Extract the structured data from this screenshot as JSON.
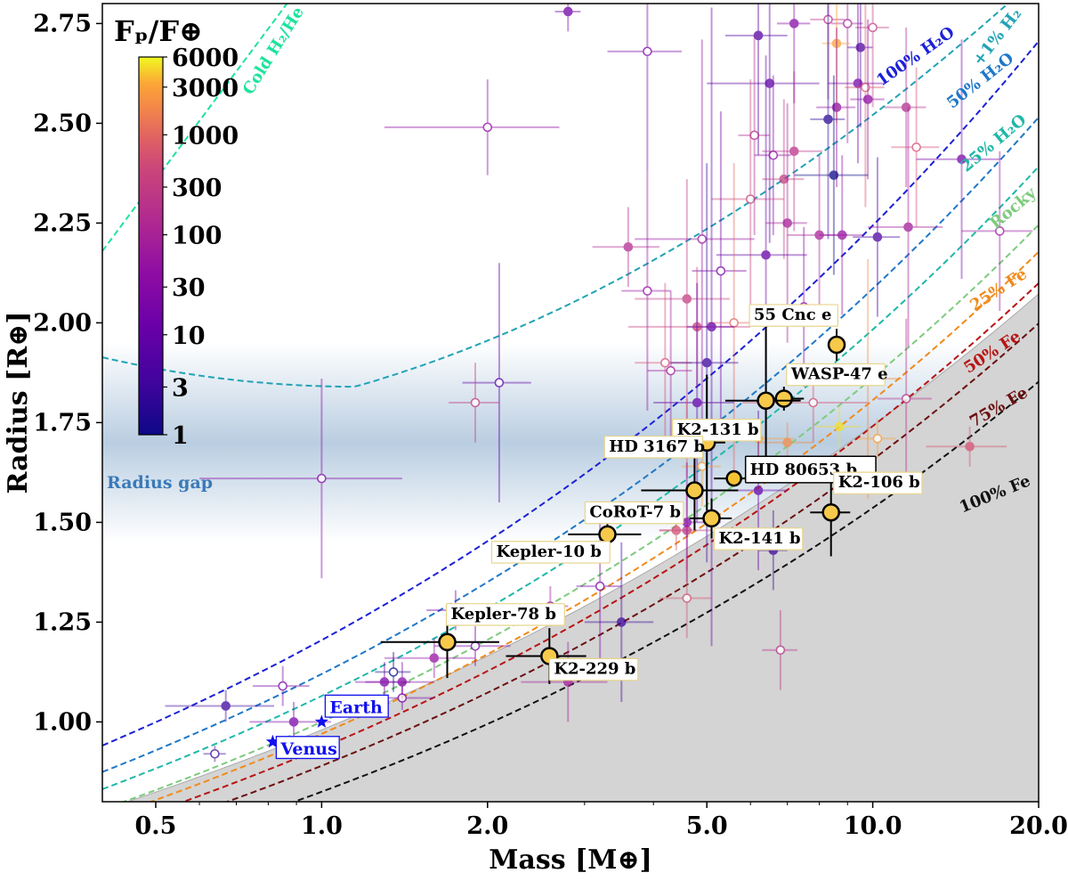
{
  "chart_data": {
    "type": "scatter",
    "title": "",
    "xlabel": "Mass [M⊕]",
    "ylabel": "Radius [R⊕]",
    "xscale": "log",
    "xlim": [
      0.4,
      20.0
    ],
    "ylim": [
      0.8,
      2.8
    ],
    "xticks": [
      0.5,
      1.0,
      2.0,
      5.0,
      10.0,
      20.0
    ],
    "xtick_labels": [
      "0.5",
      "1.0",
      "2.0",
      "5.0",
      "10.0",
      "20.0"
    ],
    "yticks": [
      1.0,
      1.25,
      1.5,
      1.75,
      2.0,
      2.25,
      2.5,
      2.75
    ],
    "ytick_labels": [
      "1.00",
      "1.25",
      "1.50",
      "1.75",
      "2.00",
      "2.25",
      "2.50",
      "2.75"
    ],
    "colorbar": {
      "title": "Fₚ/F⊕",
      "ticks": [
        "6000",
        "3000",
        "1000",
        "300",
        "100",
        "30",
        "10",
        "3",
        "1"
      ],
      "tick_values": [
        6000,
        3000,
        1000,
        300,
        100,
        30,
        10,
        3,
        1
      ],
      "colormap": "plasma",
      "placement": "top-left"
    },
    "radius_gap": {
      "label": "Radius gap",
      "center": 1.7,
      "color": "#3a7ab8"
    },
    "curves": [
      {
        "name": "Cold H₂/He",
        "label": "Cold H₂/He",
        "color": "#1de39c",
        "kind": "coldH2He"
      },
      {
        "name": "+1% H₂",
        "label": "+1% H₂",
        "color": "#21a3b5",
        "kind": "h2"
      },
      {
        "name": "100% H₂O",
        "label": "100% H₂O",
        "color": "#1c21d6",
        "f": 1.205
      },
      {
        "name": "50% H₂O",
        "label": "50% H₂O",
        "color": "#1f78c8",
        "f": 1.12
      },
      {
        "name": "25% H₂O",
        "label": "25% H₂O",
        "color": "#1fb8a8",
        "f": 1.065
      },
      {
        "name": "Rocky",
        "label": "Rocky",
        "color": "#7ecb7e",
        "f": 1.0
      },
      {
        "name": "25% Fe",
        "label": "25% Fe",
        "color": "#f08a1c",
        "f": 0.97
      },
      {
        "name": "50% Fe",
        "label": "50% Fe",
        "color": "#b81414",
        "f": 0.935
      },
      {
        "name": "75% Fe",
        "label": "75% Fe",
        "color": "#6b0f0f",
        "f": 0.89
      },
      {
        "name": "100% Fe",
        "label": "100% Fe",
        "color": "#111111",
        "f": 0.825
      }
    ],
    "highlighted_planets": [
      {
        "name": "HD 80653 b",
        "mass": 5.6,
        "radius": 1.61,
        "mass_err": 0.45,
        "radius_err": 0.02,
        "big": true
      },
      {
        "name": "55 Cnc e",
        "mass": 8.6,
        "radius": 1.945,
        "mass_err": 0.1,
        "radius_err": 0.04
      },
      {
        "name": "WASP-47 e",
        "mass": 6.9,
        "radius": 1.81,
        "mass_err": 0.6,
        "radius_err": 0.03
      },
      {
        "name": "K2-131 b",
        "mass": 6.4,
        "radius": 1.805,
        "mass_err": 1.0,
        "radius_err": 0.2
      },
      {
        "name": "HD 3167 b",
        "mass": 5.0,
        "radius": 1.7,
        "mass_err": 0.4,
        "radius_err": 0.17
      },
      {
        "name": "CoRoT-7 b",
        "mass": 4.75,
        "radius": 1.58,
        "mass_err": 0.95,
        "radius_err": 0.1
      },
      {
        "name": "K2-141 b",
        "mass": 5.1,
        "radius": 1.51,
        "mass_err": 0.45,
        "radius_err": 0.05
      },
      {
        "name": "K2-106 b",
        "mass": 8.4,
        "radius": 1.525,
        "mass_err": 0.7,
        "radius_err": 0.11
      },
      {
        "name": "Kepler-10 b",
        "mass": 3.3,
        "radius": 1.47,
        "mass_err": 0.5,
        "radius_err": 0.03
      },
      {
        "name": "Kepler-78 b",
        "mass": 1.69,
        "radius": 1.2,
        "mass_err": 0.41,
        "radius_err": 0.09
      },
      {
        "name": "K2-229 b",
        "mass": 2.59,
        "radius": 1.165,
        "mass_err": 0.43,
        "radius_err": 0.07
      }
    ],
    "solar_system": [
      {
        "name": "Earth",
        "mass": 1.0,
        "radius": 1.0
      },
      {
        "name": "Venus",
        "mass": 0.815,
        "radius": 0.95
      }
    ],
    "background_planets": [
      {
        "mass": 2.8,
        "radius": 2.78,
        "flux": 15,
        "me": 0.15,
        "re": 0.05,
        "open": false
      },
      {
        "mass": 3.9,
        "radius": 2.68,
        "flux": 20,
        "me": 0.6,
        "re": 0.3,
        "open": true
      },
      {
        "mass": 2.0,
        "radius": 2.49,
        "flux": 40,
        "me": 0.7,
        "re": 0.12,
        "open": true
      },
      {
        "mass": 6.2,
        "radius": 2.72,
        "flux": 6,
        "me": 0.8,
        "re": 0.3,
        "open": false
      },
      {
        "mass": 6.5,
        "radius": 2.6,
        "flux": 8,
        "me": 1.5,
        "re": 0.4,
        "open": false
      },
      {
        "mass": 7.2,
        "radius": 2.75,
        "flux": 30,
        "me": 0.5,
        "re": 0.2,
        "open": false
      },
      {
        "mass": 8.3,
        "radius": 2.76,
        "flux": 200,
        "me": 0.6,
        "re": 0.2,
        "open": true
      },
      {
        "mass": 9.0,
        "radius": 2.75,
        "flux": 100,
        "me": 0.6,
        "re": 0.3,
        "open": true
      },
      {
        "mass": 9.5,
        "radius": 2.69,
        "flux": 5,
        "me": 0.5,
        "re": 0.2,
        "open": false
      },
      {
        "mass": 10.0,
        "radius": 2.74,
        "flux": 300,
        "me": 0.7,
        "re": 0.2,
        "open": true
      },
      {
        "mass": 8.6,
        "radius": 2.7,
        "flux": 3000,
        "me": 0.5,
        "re": 0.2,
        "open": false
      },
      {
        "mass": 9.4,
        "radius": 2.6,
        "flux": 20,
        "me": 1.1,
        "re": 0.2,
        "open": false
      },
      {
        "mass": 9.7,
        "radius": 2.59,
        "flux": 700,
        "me": 0.8,
        "re": 0.3,
        "open": true
      },
      {
        "mass": 9.8,
        "radius": 2.56,
        "flux": 40,
        "me": 0.7,
        "re": 0.2,
        "open": false
      },
      {
        "mass": 8.3,
        "radius": 2.51,
        "flux": 2,
        "me": 0.6,
        "re": 0.3,
        "open": false
      },
      {
        "mass": 8.6,
        "radius": 2.54,
        "flux": 50,
        "me": 0.7,
        "re": 0.2,
        "open": false
      },
      {
        "mass": 11.5,
        "radius": 2.54,
        "flux": 150,
        "me": 1.0,
        "re": 0.2,
        "open": false
      },
      {
        "mass": 12.0,
        "radius": 2.44,
        "flux": 600,
        "me": 1.2,
        "re": 0.2,
        "open": true
      },
      {
        "mass": 8.5,
        "radius": 2.37,
        "flux": 1,
        "me": 1.3,
        "re": 0.25,
        "open": false
      },
      {
        "mass": 7.2,
        "radius": 2.43,
        "flux": 200,
        "me": 0.9,
        "re": 0.2,
        "open": false
      },
      {
        "mass": 6.6,
        "radius": 2.42,
        "flux": 40,
        "me": 0.5,
        "re": 0.2,
        "open": true
      },
      {
        "mass": 6.1,
        "radius": 2.47,
        "flux": 150,
        "me": 0.4,
        "re": 0.25,
        "open": true
      },
      {
        "mass": 6.9,
        "radius": 2.36,
        "flux": 300,
        "me": 0.6,
        "re": 0.2,
        "open": false
      },
      {
        "mass": 6.0,
        "radius": 2.31,
        "flux": 400,
        "me": 0.9,
        "re": 0.3,
        "open": true
      },
      {
        "mass": 7.0,
        "radius": 2.25,
        "flux": 80,
        "me": 0.6,
        "re": 0.3,
        "open": false
      },
      {
        "mass": 8.0,
        "radius": 2.22,
        "flux": 100,
        "me": 1.0,
        "re": 0.2,
        "open": false
      },
      {
        "mass": 8.8,
        "radius": 2.22,
        "flux": 50,
        "me": 0.8,
        "re": 0.2,
        "open": false
      },
      {
        "mass": 10.2,
        "radius": 2.215,
        "flux": 5,
        "me": 1.0,
        "re": 0.2,
        "open": false
      },
      {
        "mass": 11.6,
        "radius": 2.24,
        "flux": 80,
        "me": 1.8,
        "re": 0.3,
        "open": false
      },
      {
        "mass": 14.5,
        "radius": 2.41,
        "flux": 20,
        "me": 2.5,
        "re": 0.3,
        "open": false
      },
      {
        "mass": 17.0,
        "radius": 2.23,
        "flux": 60,
        "me": 2.5,
        "re": 0.2,
        "open": true
      },
      {
        "mass": 4.9,
        "radius": 2.21,
        "flux": 60,
        "me": 1.2,
        "re": 0.5,
        "open": true
      },
      {
        "mass": 6.4,
        "radius": 2.17,
        "flux": 10,
        "me": 1.2,
        "re": 0.5,
        "open": false
      },
      {
        "mass": 3.6,
        "radius": 2.19,
        "flux": 150,
        "me": 0.5,
        "re": 0.1,
        "open": false
      },
      {
        "mass": 5.3,
        "radius": 2.13,
        "flux": 20,
        "me": 0.6,
        "re": 0.4,
        "open": true
      },
      {
        "mass": 7.5,
        "radius": 2.04,
        "flux": 30,
        "me": 0.8,
        "re": 0.2,
        "open": true
      },
      {
        "mass": 3.9,
        "radius": 2.08,
        "flux": 50,
        "me": 0.4,
        "re": 0.3,
        "open": true
      },
      {
        "mass": 4.6,
        "radius": 2.06,
        "flux": 300,
        "me": 0.9,
        "re": 0.3,
        "open": false
      },
      {
        "mass": 5.6,
        "radius": 2.0,
        "flux": 1000,
        "me": 0.6,
        "re": 0.4,
        "open": true
      },
      {
        "mass": 4.8,
        "radius": 1.99,
        "flux": 400,
        "me": 1.2,
        "re": 0.15,
        "open": false
      },
      {
        "mass": 5.1,
        "radius": 1.99,
        "flux": 10,
        "me": 0.5,
        "re": 0.8,
        "open": false
      },
      {
        "mass": 4.2,
        "radius": 1.9,
        "flux": 600,
        "me": 0.5,
        "re": 0.2,
        "open": true
      },
      {
        "mass": 4.3,
        "radius": 1.88,
        "flux": 80,
        "me": 0.4,
        "re": 0.2,
        "open": true
      },
      {
        "mass": 5.0,
        "radius": 1.9,
        "flux": 3,
        "me": 0.7,
        "re": 0.5,
        "open": false
      },
      {
        "mass": 2.1,
        "radius": 1.85,
        "flux": 8,
        "me": 0.3,
        "re": 0.3,
        "open": true
      },
      {
        "mass": 1.9,
        "radius": 1.8,
        "flux": 300,
        "me": 0.2,
        "re": 0.1,
        "open": true
      },
      {
        "mass": 1.0,
        "radius": 1.61,
        "flux": 30,
        "me": 0.4,
        "re": 0.25,
        "open": true
      },
      {
        "mass": 4.8,
        "radius": 1.8,
        "flux": 10,
        "me": 0.8,
        "re": 0.3,
        "open": false
      },
      {
        "mass": 7.8,
        "radius": 1.8,
        "flux": 600,
        "me": 2.0,
        "re": 0.1,
        "open": true
      },
      {
        "mass": 9.8,
        "radius": 1.86,
        "flux": 2000,
        "me": 1.5,
        "re": 0.3,
        "open": true
      },
      {
        "mass": 11.5,
        "radius": 1.81,
        "flux": 200,
        "me": 1.3,
        "re": 0.2,
        "open": true
      },
      {
        "mass": 8.7,
        "radius": 1.74,
        "flux": 5000,
        "me": 0.8,
        "re": 0.05,
        "open": false
      },
      {
        "mass": 4.6,
        "radius": 1.71,
        "flux": 800,
        "me": 0.4,
        "re": 0.1,
        "open": false
      },
      {
        "mass": 6.2,
        "radius": 1.71,
        "flux": 3000,
        "me": 1.0,
        "re": 0.05,
        "open": false
      },
      {
        "mass": 7.0,
        "radius": 1.7,
        "flux": 2000,
        "me": 0.8,
        "re": 0.05,
        "open": false
      },
      {
        "mass": 10.2,
        "radius": 1.71,
        "flux": 3000,
        "me": 0.8,
        "re": 0.05,
        "open": true
      },
      {
        "mass": 15.0,
        "radius": 1.69,
        "flux": 600,
        "me": 2.5,
        "re": 0.05,
        "open": false
      },
      {
        "mass": 4.9,
        "radius": 1.64,
        "flux": 3000,
        "me": 0.4,
        "re": 0.1,
        "open": true
      },
      {
        "mass": 6.2,
        "radius": 1.58,
        "flux": 10,
        "me": 0.8,
        "re": 0.2,
        "open": false
      },
      {
        "mass": 4.4,
        "radius": 1.48,
        "flux": 600,
        "me": 0.3,
        "re": 0.05,
        "open": false
      },
      {
        "mass": 4.6,
        "radius": 1.48,
        "flux": 300,
        "me": 0.5,
        "re": 0.1,
        "open": false
      },
      {
        "mass": 4.6,
        "radius": 1.5,
        "flux": 30,
        "me": 0.7,
        "re": 0.15,
        "open": false
      },
      {
        "mass": 6.6,
        "radius": 1.43,
        "flux": 3,
        "me": 0.4,
        "re": 0.1,
        "open": false
      },
      {
        "mass": 4.6,
        "radius": 1.31,
        "flux": 600,
        "me": 0.5,
        "re": 0.1,
        "open": true
      },
      {
        "mass": 3.2,
        "radius": 1.34,
        "flux": 20,
        "me": 0.3,
        "re": 0.2,
        "open": true
      },
      {
        "mass": 3.5,
        "radius": 1.25,
        "flux": 3,
        "me": 0.5,
        "re": 0.2,
        "open": false
      },
      {
        "mass": 6.8,
        "radius": 1.18,
        "flux": 200,
        "me": 0.5,
        "re": 0.1,
        "open": true
      },
      {
        "mass": 1.75,
        "radius": 1.28,
        "flux": 20,
        "me": 0.2,
        "re": 0.05,
        "open": false
      },
      {
        "mass": 2.6,
        "radius": 1.29,
        "flux": 60,
        "me": 0.2,
        "re": 0.05,
        "open": true
      },
      {
        "mass": 1.9,
        "radius": 1.19,
        "flux": 20,
        "me": 0.3,
        "re": 0.05,
        "open": true
      },
      {
        "mass": 1.6,
        "radius": 1.16,
        "flux": 50,
        "me": 0.3,
        "re": 0.05,
        "open": false
      },
      {
        "mass": 2.8,
        "radius": 1.1,
        "flux": 80,
        "me": 0.5,
        "re": 0.1,
        "open": false
      },
      {
        "mass": 1.3,
        "radius": 1.1,
        "flux": 20,
        "me": 0.15,
        "re": 0.05,
        "open": false
      },
      {
        "mass": 1.4,
        "radius": 1.1,
        "flux": 30,
        "me": 0.2,
        "re": 0.05,
        "open": false
      },
      {
        "mass": 1.35,
        "radius": 1.125,
        "flux": 1,
        "me": 0.1,
        "re": 0.05,
        "open": true
      },
      {
        "mass": 1.4,
        "radius": 1.06,
        "flux": 20,
        "me": 0.2,
        "re": 0.03,
        "open": true
      },
      {
        "mass": 0.85,
        "radius": 1.09,
        "flux": 20,
        "me": 0.1,
        "re": 0.05,
        "open": true
      },
      {
        "mass": 0.67,
        "radius": 1.04,
        "flux": 3,
        "me": 0.15,
        "re": 0.04,
        "open": false
      },
      {
        "mass": 0.89,
        "radius": 1.0,
        "flux": 20,
        "me": 0.15,
        "re": 0.05,
        "open": false
      },
      {
        "mass": 0.64,
        "radius": 0.92,
        "flux": 3,
        "me": 0.03,
        "re": 0.02,
        "open": true
      }
    ]
  }
}
